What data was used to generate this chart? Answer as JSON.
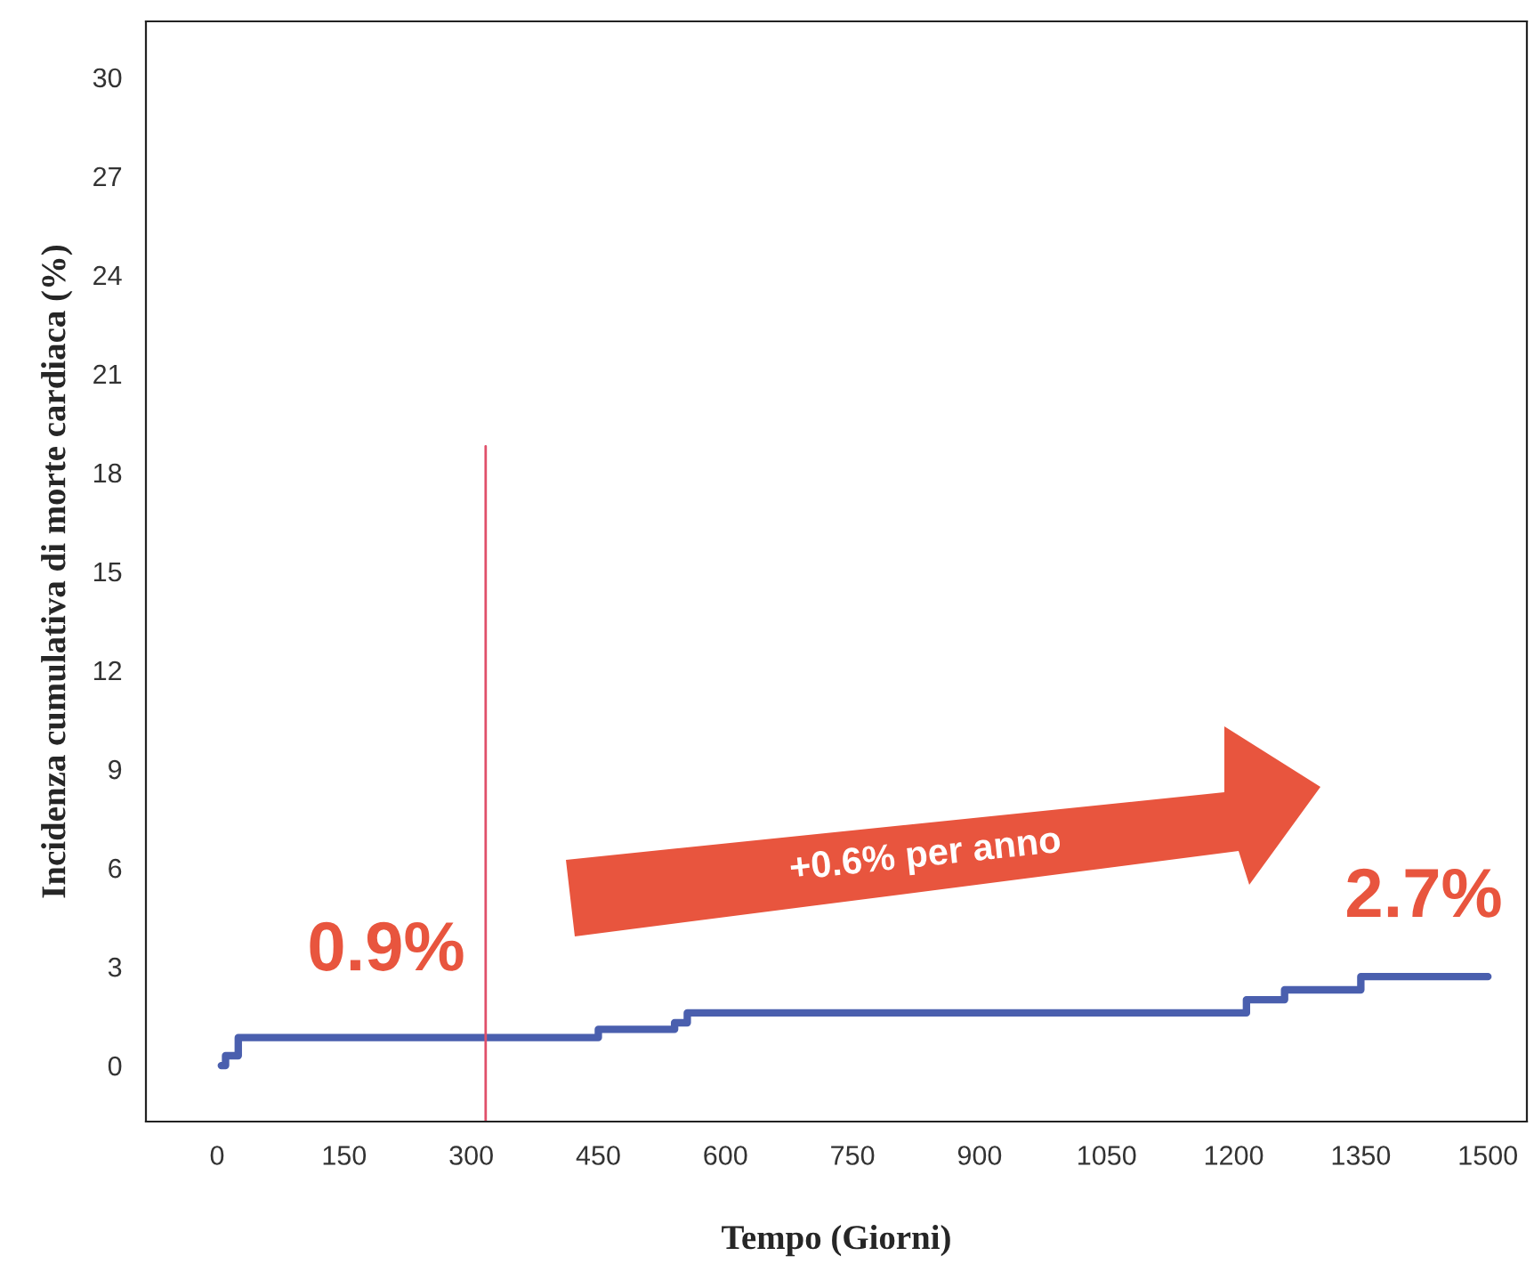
{
  "chart_data": {
    "type": "step",
    "xlabel": "Tempo (Giorni)",
    "ylabel": "Incidenza cumulativa di morte cardiaca (%)",
    "x": [
      5,
      10,
      25,
      450,
      540,
      555,
      1215,
      1260,
      1350,
      1500
    ],
    "series": [
      {
        "color": "#4a5fae",
        "values": [
          0,
          0.3,
          0.85,
          1.1,
          1.3,
          1.6,
          2.0,
          2.3,
          2.7,
          2.7
        ]
      }
    ],
    "xlim": [
      -84,
      1546
    ],
    "ylim": [
      -1.7,
      31.7
    ],
    "xticks": [
      0,
      150,
      300,
      450,
      600,
      750,
      900,
      1050,
      1200,
      1350,
      1500
    ],
    "yticks": [
      0,
      3,
      6,
      9,
      12,
      15,
      18,
      21,
      24,
      27,
      30
    ],
    "ref_lines": [
      {
        "axis": "x",
        "value": 317,
        "color": "#e0506a"
      }
    ],
    "annotations": [
      "0.9%",
      "+0.6% per anno",
      "2.7%"
    ],
    "grid": false,
    "legend": false,
    "marker": "none",
    "line_style": "solid"
  }
}
